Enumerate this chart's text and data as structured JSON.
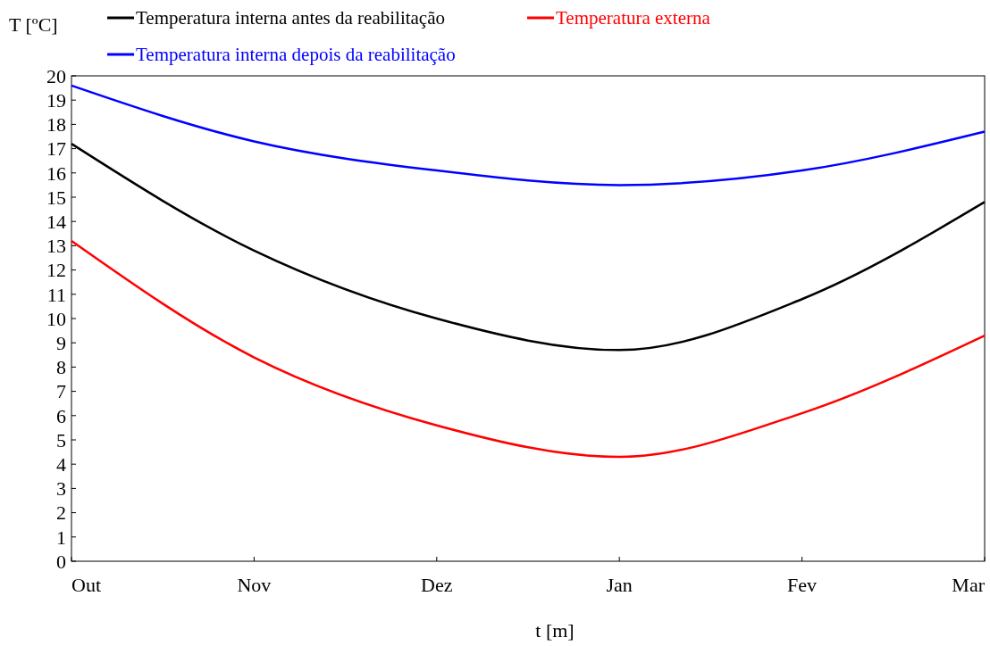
{
  "chart_data": {
    "type": "line",
    "xlabel": "t [m]",
    "ylabel": "T [ºC]",
    "categories": [
      "Out",
      "Nov",
      "Dez",
      "Jan",
      "Fev",
      "Mar"
    ],
    "series": [
      {
        "name": "Temperatura interna antes da reabilitação",
        "color": "#000000",
        "values": [
          17.2,
          12.8,
          10.0,
          8.7,
          10.8,
          14.8
        ]
      },
      {
        "name": "Temperatura externa",
        "color": "#ff0000",
        "values": [
          13.2,
          8.4,
          5.6,
          4.3,
          6.1,
          9.3
        ]
      },
      {
        "name": "Temperatura interna depois da reabilitação",
        "color": "#0000ff",
        "values": [
          19.6,
          17.3,
          16.1,
          15.5,
          16.1,
          17.7
        ]
      }
    ],
    "ylim": [
      0,
      20
    ],
    "yticks": [
      0,
      1,
      2,
      3,
      4,
      5,
      6,
      7,
      8,
      9,
      10,
      11,
      12,
      13,
      14,
      15,
      16,
      17,
      18,
      19,
      20
    ],
    "grid": false,
    "legend": "top",
    "marker": "none",
    "line_style": "solid"
  }
}
